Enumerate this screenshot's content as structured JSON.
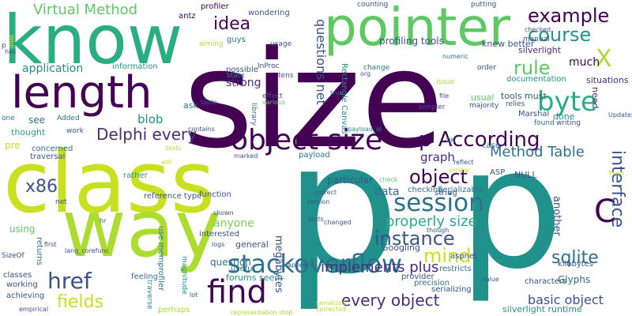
{
  "words": {
    "size": "size",
    "p_big": "p",
    "p_big2": "p",
    "class": "class",
    "way": "way",
    "know": "know",
    "pointer": "pointer",
    "length": "length",
    "object_size": "object size",
    "find": "find",
    "stackoverflow": "stackoverflow",
    "session": "session",
    "instance": "instance",
    "p_according": "p According",
    "byte": "byte",
    "example": "example",
    "course": "course",
    "x": "X",
    "c": "C",
    "rule": "rule",
    "interface": "interface",
    "idea": "idea",
    "object": "object",
    "href": "href",
    "fields": "fields",
    "mind": "mind",
    "sqlite": "sqlite",
    "delphi_every": "Delphi every",
    "virtual_method": "Virtual Method",
    "method_table": "Method Table",
    "x86": "x86",
    "properly_size": "properly size",
    "implements_plus": "implements plus",
    "every_object": "every object",
    "basic_object": "basic object",
    "questions_net": "questions net",
    "application": "application",
    "anyone": "anyone",
    "blob": "blob",
    "strong": "strong",
    "data": "data",
    "graph": "graph",
    "much": "much",
    "profiling_tools": "profiling tools",
    "knew_better": "knew better",
    "silverlight": "silverlight",
    "tools_must": "tools must",
    "done": "done",
    "situations": "situations",
    "need": "need",
    "usual": "usual",
    "null": "NULL",
    "glyphs": "Glyphs",
    "another": "another",
    "silverlight_runtime": "silverlight runtime",
    "megabytes": "megabytes",
    "forums_seem": "forums seem",
    "question": "question",
    "general": "general",
    "useful": "useful",
    "googling": "Googling",
    "particular": "particular",
    "reference_type": "reference type",
    "pre": "pre",
    "see": "see",
    "using": "using",
    "thought": "thought",
    "information": "information",
    "antz": "antz",
    "profiler": "profiler",
    "wondering": "wondering",
    "guys": "guys",
    "possible": "possible",
    "use_memprofiler": "use memprofiler",
    "rectangle_canvas": "Rectangle Canvas",
    "payload": "payload",
    "kilobytes": "kilobytes",
    "serializable": "Serializable",
    "marshal": "Marshal",
    "documentation": "documentation",
    "interested": "interested",
    "function": "function",
    "checking": "checking",
    "aspnet": "aspnet",
    "string": "string",
    "asp": "ASP",
    "case": "case",
    "characters": "characters",
    "serializing": "serializing",
    "precision": "precision",
    "provider": "provider",
    "restricts": "restricts",
    "feeling": "feeling",
    "magnitude": "magnitude",
    "traverse": "traverse",
    "perhaps": "perhaps",
    "classes": "classes",
    "working": "working",
    "achieving": "achieving",
    "sizeof": "SizeOf",
    "returns": "returns",
    "rather": "rather",
    "net": "net",
    "concerned": "concerned",
    "traversal": "traversal",
    "work": "work",
    "added": "Added",
    "one": "one",
    "ask": "ask",
    "effect": "effect",
    "tens": "tens",
    "inproc": "InProc",
    "state": "state",
    "usage": "usage",
    "aiming": "aiming",
    "counting": "counting",
    "putting": "putting",
    "checked": "checked",
    "manual": "manual",
    "change": "change",
    "org": "org",
    "numeric": "numeric",
    "order": "order",
    "issue": "issue",
    "file": "file",
    "true": "true",
    "simpler": "simpler",
    "majority": "majority",
    "relies": "relies",
    "writing": "writing",
    "found": "found",
    "updates": "Updates",
    "library": "library",
    "various": "various",
    "table": "table",
    "contains": "contains",
    "payload_id": "payload_id",
    "ok": "OK",
    "similar": "similar",
    "reflect": "reflect",
    "check": "check",
    "fixed": "fixed",
    "version": "version",
    "correct": "correct",
    "texts": "texts",
    "changed": "changed",
    "though": "though",
    "appears": "appears",
    "value": "value",
    "corrected": "corrected",
    "representation_stop": "representation stop",
    "serialized": "serialized",
    "lot": "lot",
    "logs": "logs",
    "shown": "shown",
    "first": "first",
    "lang_corefunc": "lang_corefunc",
    "hr": "hr",
    "empirical": "empirical",
    "marked": "marked",
    "will": "will",
    "hex": "hex",
    "web": "Web",
    "this": "this",
    "p_small": "p",
    "tests": "tests"
  }
}
